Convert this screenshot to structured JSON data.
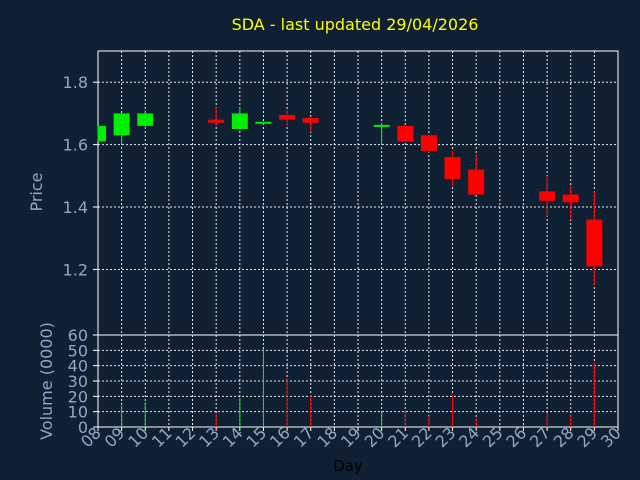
{
  "title": "SDA - last updated 29/04/2026",
  "colors": {
    "background": "#0f2033",
    "up": "#00ee00",
    "down": "#ff0000",
    "grid": "#ffffff",
    "label": "#8fa9c6",
    "title": "#ffff00"
  },
  "chart_data": {
    "type": "candlestick",
    "title": "SDA - last updated 29/04/2026",
    "xlabel": "Day",
    "ylabel_price": "Price",
    "ylabel_volume": "Volume (0000)",
    "x_ticks": [
      "08",
      "09",
      "10",
      "11",
      "12",
      "13",
      "14",
      "15",
      "16",
      "17",
      "18",
      "19",
      "20",
      "21",
      "22",
      "23",
      "24",
      "25",
      "26",
      "27",
      "28",
      "29",
      "30"
    ],
    "x_range": [
      8,
      30
    ],
    "price_ylim": [
      0.99,
      1.9
    ],
    "price_ticks": [
      "1.2",
      "1.4",
      "1.6",
      "1.8"
    ],
    "volume_ylim": [
      0,
      60
    ],
    "volume_ticks": [
      "0",
      "10",
      "20",
      "30",
      "40",
      "50",
      "60"
    ],
    "grid": true,
    "candles": [
      {
        "day": 8,
        "open": 1.61,
        "close": 1.66,
        "high": 1.66,
        "low": 1.61,
        "volume": 0
      },
      {
        "day": 9,
        "open": 1.63,
        "close": 1.7,
        "high": 1.7,
        "low": 1.6,
        "volume": 14
      },
      {
        "day": 10,
        "open": 1.66,
        "close": 1.7,
        "high": 1.71,
        "low": 1.65,
        "volume": 16
      },
      {
        "day": 13,
        "open": 1.68,
        "close": 1.67,
        "high": 1.72,
        "low": 1.66,
        "volume": 9
      },
      {
        "day": 14,
        "open": 1.65,
        "close": 1.7,
        "high": 1.72,
        "low": 1.65,
        "volume": 19
      },
      {
        "day": 15,
        "open": 1.665,
        "close": 1.67,
        "high": 1.67,
        "low": 1.665,
        "volume": 51
      },
      {
        "day": 16,
        "open": 1.695,
        "close": 1.68,
        "high": 1.71,
        "low": 1.66,
        "volume": 32
      },
      {
        "day": 17,
        "open": 1.685,
        "close": 1.67,
        "high": 1.69,
        "low": 1.64,
        "volume": 21
      },
      {
        "day": 20,
        "open": 1.655,
        "close": 1.66,
        "high": 1.67,
        "low": 1.6,
        "volume": 10
      },
      {
        "day": 21,
        "open": 1.66,
        "close": 1.61,
        "high": 1.66,
        "low": 1.61,
        "volume": 11
      },
      {
        "day": 22,
        "open": 1.63,
        "close": 1.58,
        "high": 1.63,
        "low": 1.575,
        "volume": 7
      },
      {
        "day": 23,
        "open": 1.56,
        "close": 1.49,
        "high": 1.58,
        "low": 1.47,
        "volume": 21
      },
      {
        "day": 24,
        "open": 1.52,
        "close": 1.44,
        "high": 1.57,
        "low": 1.44,
        "volume": 6
      },
      {
        "day": 27,
        "open": 1.45,
        "close": 1.42,
        "high": 1.5,
        "low": 1.37,
        "volume": 9
      },
      {
        "day": 28,
        "open": 1.44,
        "close": 1.415,
        "high": 1.47,
        "low": 1.36,
        "volume": 8
      },
      {
        "day": 29,
        "open": 1.36,
        "close": 1.21,
        "high": 1.45,
        "low": 1.15,
        "volume": 42
      }
    ]
  }
}
